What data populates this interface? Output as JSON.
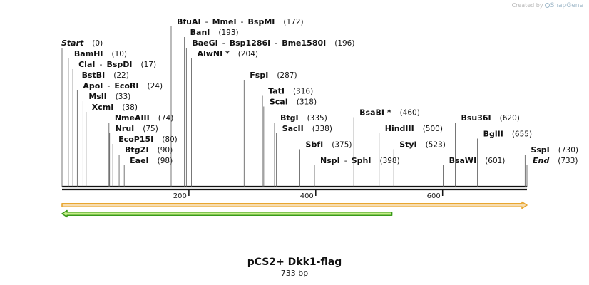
{
  "credit": {
    "prefix": "Created by",
    "brand": "SnapGene"
  },
  "plasmid": {
    "name": "pCS2+ Dkk1-flag",
    "length_label": "733 bp",
    "length": 733
  },
  "ticks": [
    {
      "pos": 200,
      "label": "200"
    },
    {
      "pos": 400,
      "label": "400"
    },
    {
      "pos": 600,
      "label": "600"
    }
  ],
  "sites": [
    {
      "id": "start",
      "row": 0,
      "names": [
        "Start"
      ],
      "pos": 0,
      "pos_label": "(0)",
      "italic": true
    },
    {
      "id": "bamhi",
      "row": 1,
      "names": [
        "BamHI"
      ],
      "pos": 10,
      "pos_label": "(10)"
    },
    {
      "id": "clai",
      "row": 2,
      "names": [
        "ClaI",
        "BspDI"
      ],
      "pos": 17,
      "pos_label": "(17)"
    },
    {
      "id": "bstbi",
      "row": 3,
      "names": [
        "BstBI"
      ],
      "pos": 22,
      "pos_label": "(22)"
    },
    {
      "id": "apoi",
      "row": 4,
      "names": [
        "ApoI",
        "EcoRI"
      ],
      "pos": 24,
      "pos_label": "(24)"
    },
    {
      "id": "msli",
      "row": 5,
      "names": [
        "MslI"
      ],
      "pos": 33,
      "pos_label": "(33)"
    },
    {
      "id": "xcmi",
      "row": 6,
      "names": [
        "XcmI"
      ],
      "pos": 38,
      "pos_label": "(38)"
    },
    {
      "id": "nmeaiii",
      "row": 7,
      "names": [
        "NmeAIII"
      ],
      "pos": 74,
      "pos_label": "(74)"
    },
    {
      "id": "nrui",
      "row": 8,
      "names": [
        "NruI"
      ],
      "pos": 75,
      "pos_label": "(75)"
    },
    {
      "id": "ecop15i",
      "row": 9,
      "names": [
        "EcoP15I"
      ],
      "pos": 80,
      "pos_label": "(80)"
    },
    {
      "id": "btgzi",
      "row": 10,
      "names": [
        "BtgZI"
      ],
      "pos": 90,
      "pos_label": "(90)"
    },
    {
      "id": "eaei",
      "row": 11,
      "names": [
        "EaeI"
      ],
      "pos": 98,
      "pos_label": "(98)"
    },
    {
      "id": "bfuai",
      "row": -2,
      "names": [
        "BfuAI",
        "MmeI",
        "BspMI"
      ],
      "pos": 172,
      "pos_label": "(172)"
    },
    {
      "id": "bani",
      "row": -1,
      "names": [
        "BanI"
      ],
      "pos": 193,
      "pos_label": "(193)"
    },
    {
      "id": "baegi",
      "row": 0,
      "names": [
        "BaeGI",
        "Bsp1286I",
        "Bme1580I"
      ],
      "pos": 196,
      "pos_label": "(196)"
    },
    {
      "id": "alwni",
      "row": 1,
      "names": [
        "AlwNI *"
      ],
      "pos": 204,
      "pos_label": "(204)"
    },
    {
      "id": "fspi",
      "row": 3,
      "names": [
        "FspI"
      ],
      "pos": 287,
      "pos_label": "(287)"
    },
    {
      "id": "tati",
      "row": 4.5,
      "names": [
        "TatI"
      ],
      "pos": 316,
      "pos_label": "(316)"
    },
    {
      "id": "scai",
      "row": 5.5,
      "names": [
        "ScaI"
      ],
      "pos": 318,
      "pos_label": "(318)"
    },
    {
      "id": "btgi",
      "row": 7,
      "names": [
        "BtgI"
      ],
      "pos": 335,
      "pos_label": "(335)"
    },
    {
      "id": "sacii",
      "row": 8,
      "names": [
        "SacII"
      ],
      "pos": 338,
      "pos_label": "(338)"
    },
    {
      "id": "sbfi",
      "row": 9.5,
      "names": [
        "SbfI"
      ],
      "pos": 375,
      "pos_label": "(375)"
    },
    {
      "id": "nspi",
      "row": 11,
      "names": [
        "NspI",
        "SphI"
      ],
      "pos": 398,
      "pos_label": "(398)"
    },
    {
      "id": "bsabi",
      "row": 6.5,
      "names": [
        "BsaBI *"
      ],
      "pos": 460,
      "pos_label": "(460)"
    },
    {
      "id": "hindiii",
      "row": 8,
      "names": [
        "HindIII"
      ],
      "pos": 500,
      "pos_label": "(500)"
    },
    {
      "id": "styi",
      "row": 9.5,
      "names": [
        "StyI"
      ],
      "pos": 523,
      "pos_label": "(523)"
    },
    {
      "id": "bsawi",
      "row": 11,
      "names": [
        "BsaWI"
      ],
      "pos": 601,
      "pos_label": "(601)"
    },
    {
      "id": "bsu36i",
      "row": 7,
      "names": [
        "Bsu36I"
      ],
      "pos": 620,
      "pos_label": "(620)"
    },
    {
      "id": "bglii",
      "row": 8.5,
      "names": [
        "BglII"
      ],
      "pos": 655,
      "pos_label": "(655)"
    },
    {
      "id": "sspi",
      "row": 10,
      "names": [
        "SspI"
      ],
      "pos": 730,
      "pos_label": "(730)"
    },
    {
      "id": "end",
      "row": 11,
      "names": [
        "End"
      ],
      "pos": 733,
      "pos_label": "(733)",
      "italic": true
    }
  ],
  "features": [
    {
      "id": "orange-feature",
      "start": 0,
      "end": 733,
      "direction": "forward",
      "color": "#e8a630",
      "fill": "#f7ddb0"
    },
    {
      "id": "green-feature",
      "start": 0,
      "end": 520,
      "direction": "reverse",
      "color": "#3a9a1a",
      "fill": "#c8ef8a"
    }
  ]
}
